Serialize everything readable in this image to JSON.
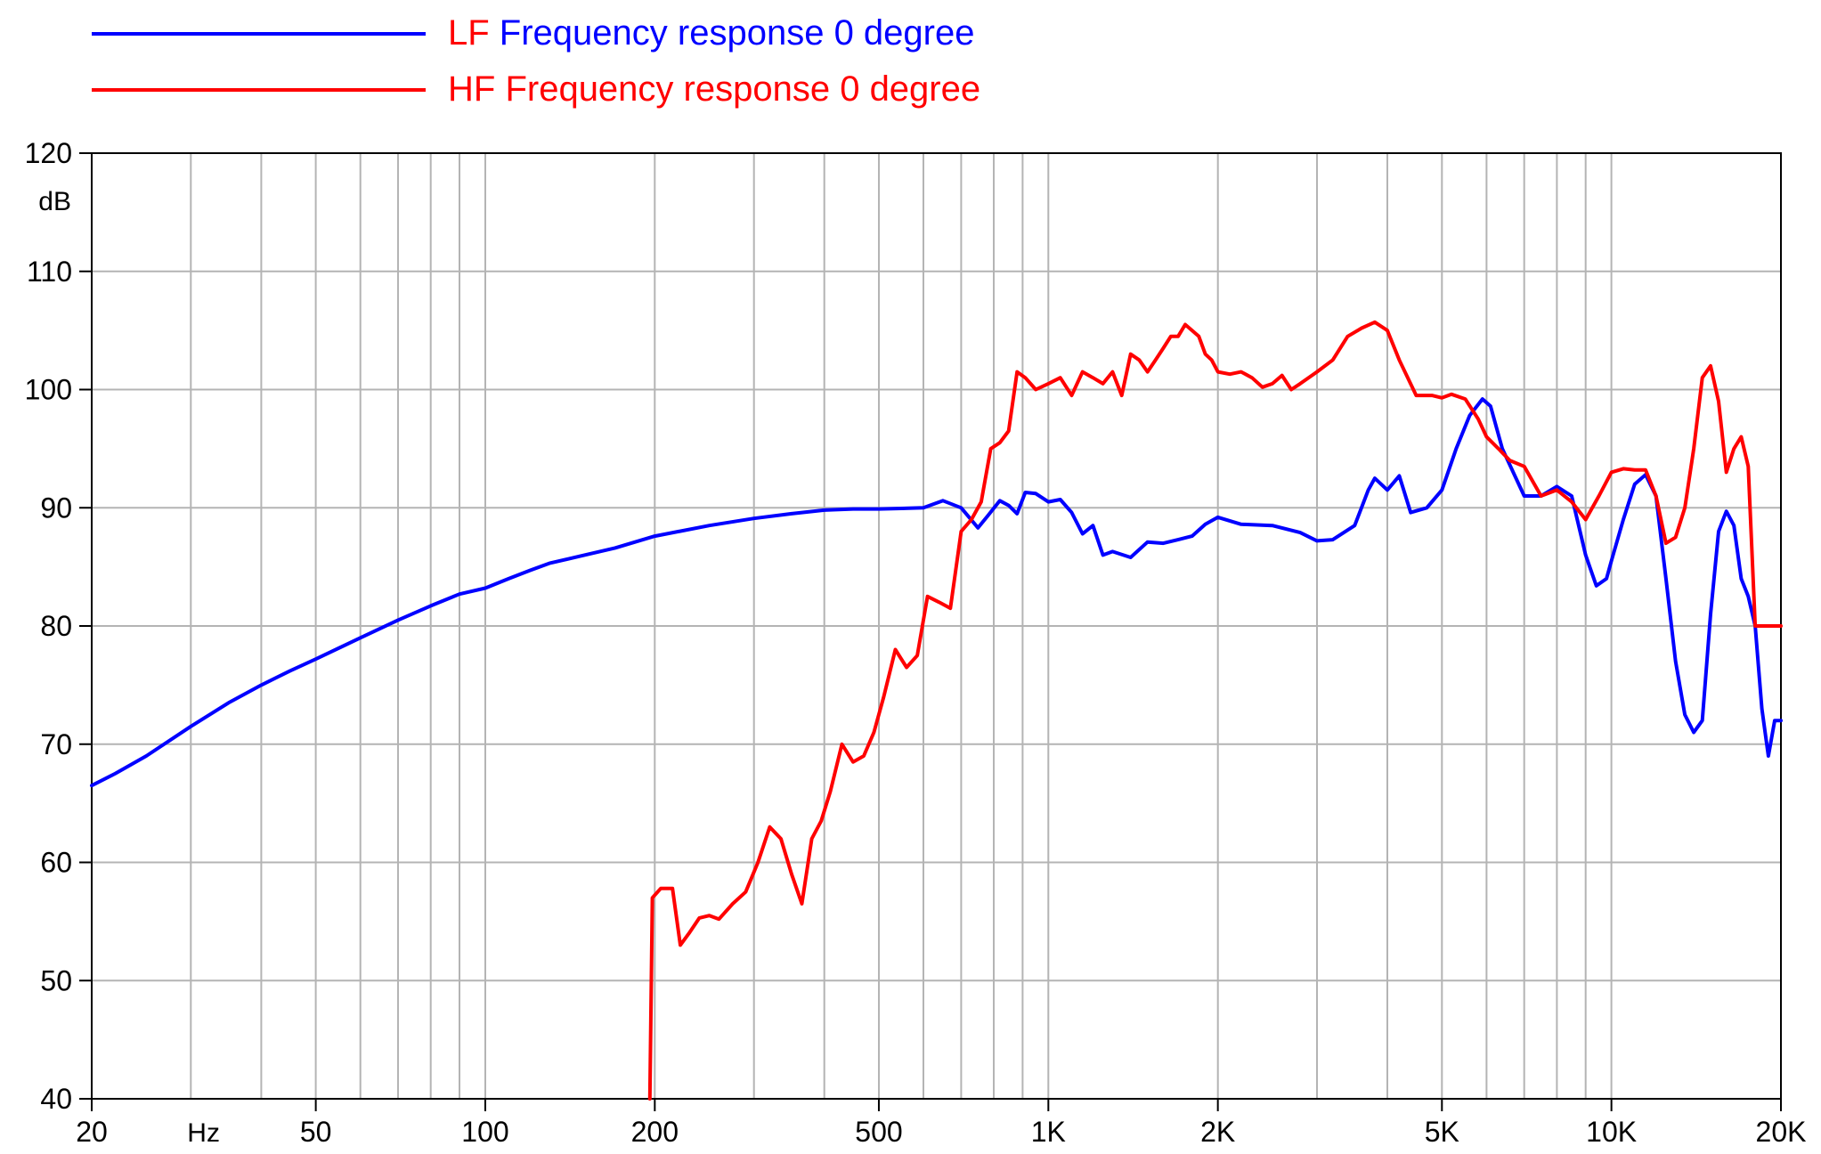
{
  "chart_data": {
    "type": "line",
    "title": "",
    "xlabel": "",
    "ylabel": "",
    "x_scale": "log",
    "xlim": [
      20,
      20000
    ],
    "ylim": [
      40,
      120
    ],
    "grid": true,
    "y_unit_label": "dB",
    "x_unit_label": "Hz",
    "x_ticks": [
      {
        "value": 20,
        "label": "20"
      },
      {
        "value": 50,
        "label": "50"
      },
      {
        "value": 100,
        "label": "100"
      },
      {
        "value": 200,
        "label": "200"
      },
      {
        "value": 500,
        "label": "500"
      },
      {
        "value": 1000,
        "label": "1K"
      },
      {
        "value": 2000,
        "label": "2K"
      },
      {
        "value": 5000,
        "label": "5K"
      },
      {
        "value": 10000,
        "label": "10K"
      },
      {
        "value": 20000,
        "label": "20K"
      }
    ],
    "y_ticks": [
      {
        "value": 40,
        "label": "40"
      },
      {
        "value": 50,
        "label": "50"
      },
      {
        "value": 60,
        "label": "60"
      },
      {
        "value": 70,
        "label": "70"
      },
      {
        "value": 80,
        "label": "80"
      },
      {
        "value": 90,
        "label": "90"
      },
      {
        "value": 100,
        "label": "100"
      },
      {
        "value": 110,
        "label": "110"
      },
      {
        "value": 120,
        "label": "120"
      }
    ],
    "legend": {
      "placement": "top-left",
      "entries": [
        {
          "parts": [
            {
              "text": "LF",
              "color": "#ff0000"
            },
            {
              "text": "Frequency response 0 degree",
              "color": "#0000ff"
            }
          ],
          "line_color": "#0000ff"
        },
        {
          "parts": [
            {
              "text": "HF",
              "color": "#ff0000"
            },
            {
              "text": "Frequency response 0 degree",
              "color": "#ff0000"
            }
          ],
          "line_color": "#ff0000"
        }
      ]
    },
    "series": [
      {
        "name": "LF",
        "color": "#0000ff",
        "x": [
          20,
          22,
          25,
          30,
          35,
          40,
          45,
          50,
          60,
          70,
          80,
          90,
          100,
          110,
          120,
          130,
          150,
          170,
          200,
          250,
          300,
          350,
          400,
          450,
          500,
          600,
          650,
          700,
          750,
          780,
          820,
          850,
          880,
          910,
          950,
          1000,
          1050,
          1100,
          1150,
          1200,
          1250,
          1300,
          1400,
          1500,
          1600,
          1700,
          1800,
          1900,
          2000,
          2200,
          2500,
          2800,
          3000,
          3200,
          3500,
          3700,
          3800,
          4000,
          4200,
          4400,
          4700,
          5000,
          5300,
          5600,
          5900,
          6100,
          6400,
          7000,
          7500,
          8000,
          8500,
          9000,
          9400,
          9800,
          10000,
          10500,
          11000,
          11500,
          12000,
          12500,
          13000,
          13500,
          14000,
          14500,
          15000,
          15500,
          16000,
          16500,
          17000,
          17500,
          18000,
          18500,
          19000,
          19500,
          20000
        ],
        "values": [
          66.5,
          67.5,
          69.0,
          71.5,
          73.5,
          75.0,
          76.2,
          77.2,
          79.0,
          80.5,
          81.7,
          82.7,
          83.2,
          84.0,
          84.7,
          85.3,
          86.0,
          86.6,
          87.6,
          88.5,
          89.1,
          89.5,
          89.8,
          89.9,
          89.9,
          90.0,
          90.6,
          90.0,
          88.3,
          89.3,
          90.6,
          90.2,
          89.5,
          91.3,
          91.2,
          90.5,
          90.7,
          89.6,
          87.8,
          88.5,
          86.0,
          86.3,
          85.8,
          87.1,
          87.0,
          87.3,
          87.6,
          88.6,
          89.2,
          88.6,
          88.5,
          87.9,
          87.2,
          87.3,
          88.5,
          91.5,
          92.5,
          91.5,
          92.7,
          89.6,
          90.0,
          91.5,
          95.0,
          97.8,
          99.2,
          98.6,
          95.0,
          91.0,
          91.0,
          91.8,
          91.0,
          86.0,
          83.4,
          84.0,
          85.5,
          89.0,
          92.0,
          92.8,
          91.0,
          84.0,
          77.0,
          72.5,
          71.0,
          72.0,
          81.0,
          88.0,
          89.7,
          88.5,
          84.0,
          82.5,
          80.0,
          73.0,
          69.0,
          72.0,
          72.0
        ]
      },
      {
        "name": "HF",
        "color": "#ff0000",
        "x": [
          196,
          198,
          205,
          215,
          222,
          230,
          240,
          250,
          260,
          275,
          290,
          305,
          320,
          335,
          350,
          365,
          380,
          395,
          410,
          430,
          450,
          470,
          490,
          510,
          535,
          560,
          585,
          610,
          640,
          670,
          700,
          730,
          760,
          790,
          820,
          850,
          880,
          910,
          950,
          1000,
          1050,
          1100,
          1150,
          1200,
          1250,
          1300,
          1350,
          1400,
          1450,
          1500,
          1550,
          1600,
          1650,
          1700,
          1750,
          1800,
          1850,
          1900,
          1950,
          2000,
          2100,
          2200,
          2300,
          2400,
          2500,
          2600,
          2700,
          2800,
          3000,
          3200,
          3400,
          3600,
          3800,
          4000,
          4200,
          4500,
          4800,
          5000,
          5200,
          5500,
          5800,
          6000,
          6300,
          6600,
          7000,
          7500,
          8000,
          8500,
          9000,
          9500,
          10000,
          10500,
          11000,
          11500,
          12000,
          12500,
          13000,
          13500,
          14000,
          14500,
          15000,
          15500,
          16000,
          16500,
          17000,
          17500,
          18000,
          18500,
          19000,
          19500,
          20000
        ],
        "values": [
          40.0,
          57.0,
          57.8,
          57.8,
          53.0,
          54.0,
          55.3,
          55.5,
          55.2,
          56.5,
          57.5,
          60.0,
          63.0,
          62.0,
          59.0,
          56.5,
          62.0,
          63.5,
          66.0,
          70.0,
          68.5,
          69.0,
          71.0,
          74.0,
          78.0,
          76.5,
          77.5,
          82.5,
          82.0,
          81.5,
          88.0,
          89.0,
          90.5,
          95.0,
          95.5,
          96.5,
          101.5,
          101.0,
          100.0,
          100.5,
          101.0,
          99.5,
          101.5,
          101.0,
          100.5,
          101.5,
          99.5,
          103.0,
          102.5,
          101.5,
          102.5,
          103.5,
          104.5,
          104.5,
          105.5,
          105.0,
          104.5,
          103.0,
          102.5,
          101.5,
          101.3,
          101.5,
          101.0,
          100.2,
          100.5,
          101.2,
          100.0,
          100.5,
          101.5,
          102.5,
          104.5,
          105.2,
          105.7,
          105.0,
          102.5,
          99.5,
          99.5,
          99.3,
          99.6,
          99.2,
          97.5,
          96.0,
          95.0,
          94.0,
          93.5,
          91.0,
          91.5,
          90.5,
          89.0,
          91.0,
          93.0,
          93.3,
          93.2,
          93.2,
          91.0,
          87.0,
          87.5,
          90.0,
          95.0,
          101.0,
          102.0,
          99.0,
          93.0,
          95.0,
          96.0,
          93.5,
          80.0,
          80.0,
          80.0,
          80.0,
          80.0
        ]
      }
    ]
  }
}
